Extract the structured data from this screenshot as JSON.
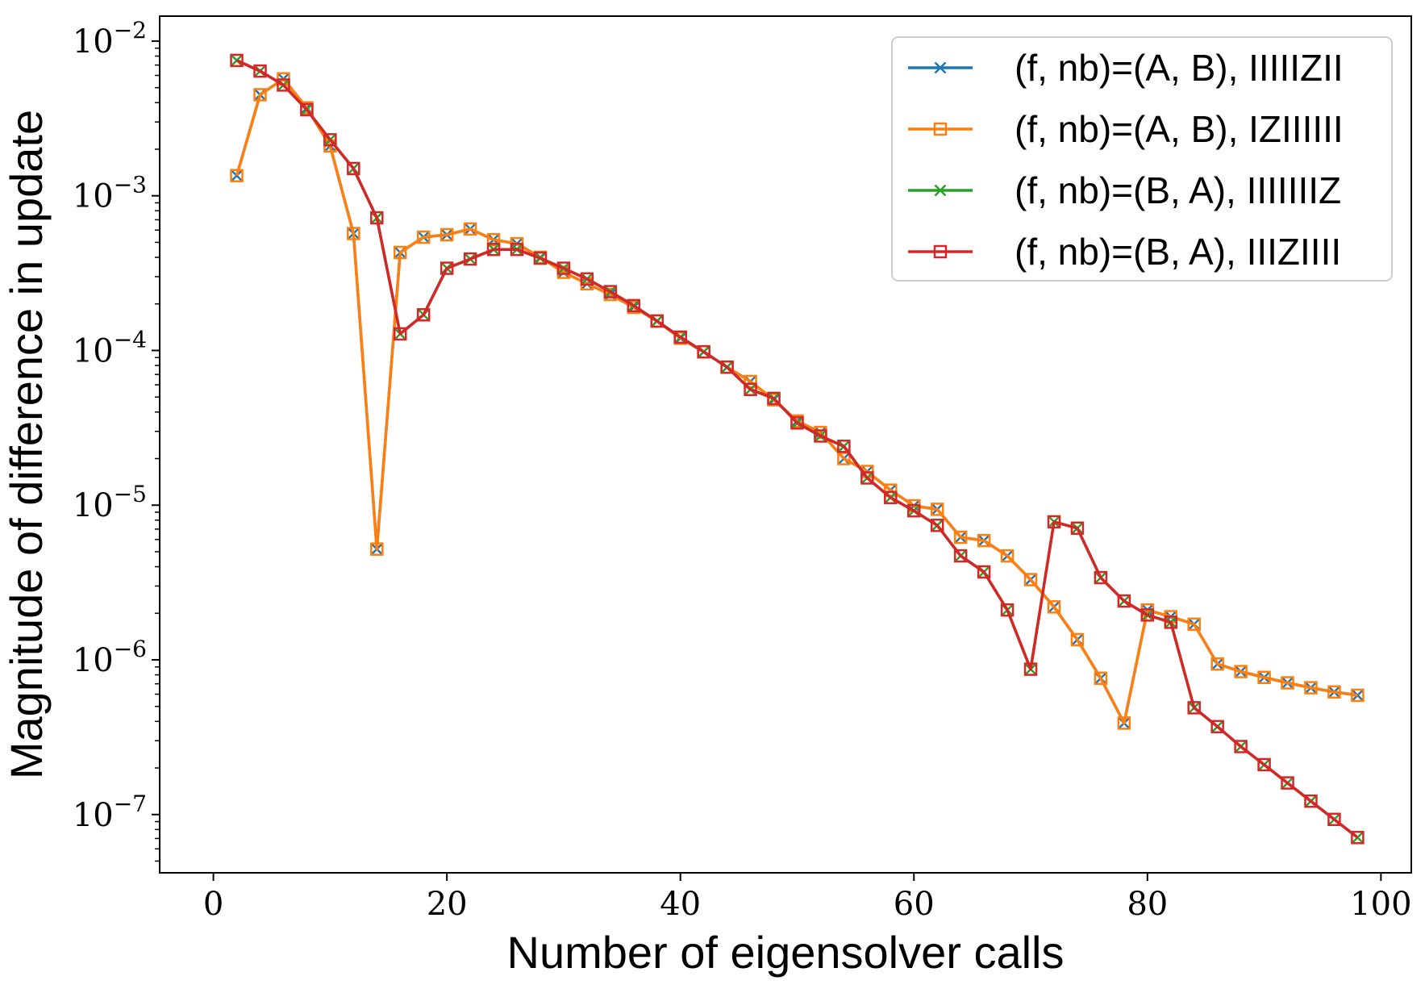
{
  "chart_data": {
    "type": "line",
    "xlabel": "Number of eigensolver calls",
    "ylabel": "Magnitude of difference in update",
    "xlim": [
      -4.6,
      102.6
    ],
    "ylim": [
      4.2e-08,
      0.0145
    ],
    "yscale": "log",
    "xticks": [
      0,
      20,
      40,
      60,
      80,
      100
    ],
    "xtick_labels": [
      "0",
      "20",
      "40",
      "60",
      "80",
      "100"
    ],
    "yticks": [
      -7,
      -6,
      -5,
      -4,
      -3,
      -2
    ],
    "ytick_labels": [
      {
        "base": "10",
        "exp": "−7"
      },
      {
        "base": "10",
        "exp": "−6"
      },
      {
        "base": "10",
        "exp": "−5"
      },
      {
        "base": "10",
        "exp": "−4"
      },
      {
        "base": "10",
        "exp": "−3"
      },
      {
        "base": "10",
        "exp": "−2"
      }
    ],
    "grid": false,
    "legend_position": "upper right",
    "x": [
      2,
      4,
      6,
      8,
      10,
      12,
      14,
      16,
      18,
      20,
      22,
      24,
      26,
      28,
      30,
      32,
      34,
      36,
      38,
      40,
      42,
      44,
      46,
      48,
      50,
      52,
      54,
      56,
      58,
      60,
      62,
      64,
      66,
      68,
      70,
      72,
      74,
      76,
      78,
      80,
      82,
      84,
      86,
      88,
      90,
      92,
      94,
      96,
      98
    ],
    "series": [
      {
        "name": "(f, nb)=(A, B), IIIIIZII",
        "color": "#1f77b4",
        "marker": "x",
        "values": [
          0.00135,
          0.0045,
          0.0057,
          0.0037,
          0.0021,
          0.00057,
          5.2e-06,
          0.00043,
          0.00054,
          0.00056,
          0.00061,
          0.00052,
          0.00049,
          0.0004,
          0.00032,
          0.00027,
          0.00023,
          0.00019,
          0.000155,
          0.00012,
          9.8e-05,
          7.8e-05,
          6.3e-05,
          4.8e-05,
          3.5e-05,
          2.95e-05,
          2e-05,
          1.65e-05,
          1.25e-05,
          9.9e-06,
          9.4e-06,
          6.2e-06,
          5.9e-06,
          4.7e-06,
          3.3e-06,
          2.2e-06,
          1.35e-06,
          7.6e-07,
          3.9e-07,
          2.1e-06,
          1.9e-06,
          1.7e-06,
          9.4e-07,
          8.4e-07,
          7.7e-07,
          7.1e-07,
          6.6e-07,
          6.2e-07,
          5.9e-07
        ]
      },
      {
        "name": "(f, nb)=(A, B), IZIIIIII",
        "color": "#ff7f0e",
        "marker": "square",
        "values": [
          0.00135,
          0.0045,
          0.0057,
          0.0037,
          0.0021,
          0.00057,
          5.2e-06,
          0.00043,
          0.00054,
          0.00056,
          0.00061,
          0.00052,
          0.00049,
          0.0004,
          0.00032,
          0.00027,
          0.00023,
          0.00019,
          0.000155,
          0.00012,
          9.8e-05,
          7.8e-05,
          6.3e-05,
          4.8e-05,
          3.5e-05,
          2.95e-05,
          2e-05,
          1.65e-05,
          1.25e-05,
          9.9e-06,
          9.4e-06,
          6.2e-06,
          5.9e-06,
          4.7e-06,
          3.3e-06,
          2.2e-06,
          1.35e-06,
          7.6e-07,
          3.9e-07,
          2.1e-06,
          1.9e-06,
          1.7e-06,
          9.4e-07,
          8.4e-07,
          7.7e-07,
          7.1e-07,
          6.6e-07,
          6.2e-07,
          5.9e-07
        ]
      },
      {
        "name": "(f, nb)=(B, A), IIIIIIIZ",
        "color": "#2ca02c",
        "marker": "x",
        "values": [
          0.0075,
          0.0064,
          0.0052,
          0.0036,
          0.0023,
          0.0015,
          0.00072,
          0.000128,
          0.00017,
          0.00034,
          0.00039,
          0.00045,
          0.00045,
          0.000395,
          0.00034,
          0.00029,
          0.00024,
          0.000195,
          0.000155,
          0.000122,
          9.8e-05,
          7.8e-05,
          5.6e-05,
          4.9e-05,
          3.4e-05,
          2.8e-05,
          2.4e-05,
          1.5e-05,
          1.12e-05,
          9.2e-06,
          7.4e-06,
          4.7e-06,
          3.7e-06,
          2.1e-06,
          8.7e-07,
          7.8e-06,
          7.1e-06,
          3.4e-06,
          2.4e-06,
          1.95e-06,
          1.75e-06,
          4.9e-07,
          3.7e-07,
          2.75e-07,
          2.1e-07,
          1.6e-07,
          1.22e-07,
          9.3e-08,
          7.1e-08
        ]
      },
      {
        "name": "(f, nb)=(B, A), IIIZIIII",
        "color": "#d62728",
        "marker": "square",
        "values": [
          0.0075,
          0.0064,
          0.0052,
          0.0036,
          0.0023,
          0.0015,
          0.00072,
          0.000128,
          0.00017,
          0.00034,
          0.00039,
          0.00045,
          0.00045,
          0.000395,
          0.00034,
          0.00029,
          0.00024,
          0.000195,
          0.000155,
          0.000122,
          9.8e-05,
          7.8e-05,
          5.6e-05,
          4.9e-05,
          3.4e-05,
          2.8e-05,
          2.4e-05,
          1.5e-05,
          1.12e-05,
          9.2e-06,
          7.4e-06,
          4.7e-06,
          3.7e-06,
          2.1e-06,
          8.7e-07,
          7.8e-06,
          7.1e-06,
          3.4e-06,
          2.4e-06,
          1.95e-06,
          1.75e-06,
          4.9e-07,
          3.7e-07,
          2.75e-07,
          2.1e-07,
          1.6e-07,
          1.22e-07,
          9.3e-08,
          7.1e-08
        ]
      }
    ]
  }
}
